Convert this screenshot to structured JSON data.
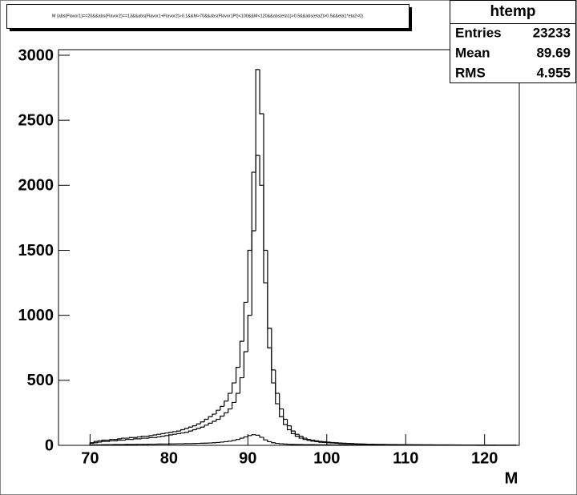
{
  "chart_data": {
    "type": "histogram",
    "title": "M {abs(Flavor1)==20&&abs(Flavor2)==13&&abs(Flavor1+Flavor2)>0.1&&M>70&&abs(Flavor1Pt)<100&&M<120&&abs(eta1)>0.5&&abs(eta2)>0.5&&eta1*eta2<0}",
    "x_label": "M",
    "xlim": [
      66,
      124.4
    ],
    "ylim": [
      0,
      3043
    ],
    "xticks": [
      70,
      80,
      90,
      100,
      110,
      120
    ],
    "yticks": [
      0,
      500,
      1000,
      1500,
      2000,
      2500,
      3000
    ],
    "bins": [
      70,
      70.5,
      71,
      71.5,
      72,
      72.5,
      73,
      73.5,
      74,
      74.5,
      75,
      75.5,
      76,
      76.5,
      77,
      77.5,
      78,
      78.5,
      79,
      79.5,
      80,
      80.5,
      81,
      81.5,
      82,
      82.5,
      83,
      83.5,
      84,
      84.5,
      85,
      85.5,
      86,
      86.5,
      87,
      87.5,
      88,
      88.5,
      89,
      89.5,
      90,
      90.5,
      91,
      91.5,
      92,
      92.5,
      93,
      93.5,
      94,
      94.5,
      95,
      95.5,
      96,
      96.5,
      97,
      97.5,
      98,
      98.5,
      99,
      99.5,
      100,
      100.5,
      101,
      101.5,
      102,
      102.5,
      103,
      103.5,
      104,
      104.5,
      105,
      105.5,
      106,
      106.5,
      107,
      107.5,
      108,
      108.5,
      109,
      109.5,
      110,
      110.5,
      111,
      111.5,
      112,
      112.5,
      113,
      113.5,
      114,
      114.5,
      115,
      115.5,
      116,
      116.5,
      117,
      117.5,
      118,
      118.5,
      119,
      119.5,
      120,
      120.5,
      121,
      121.5,
      122,
      122.5,
      123,
      123.5,
      124
    ],
    "series": [
      {
        "color": "#000000",
        "values": [
          20,
          30,
          35,
          40,
          40,
          45,
          45,
          50,
          55,
          55,
          60,
          60,
          65,
          70,
          70,
          75,
          80,
          85,
          90,
          95,
          100,
          105,
          110,
          120,
          130,
          140,
          150,
          165,
          180,
          200,
          220,
          240,
          270,
          300,
          340,
          400,
          480,
          600,
          800,
          1100,
          1500,
          2100,
          2890,
          2550,
          1500,
          900,
          580,
          400,
          280,
          200,
          150,
          110,
          85,
          70,
          55,
          45,
          40,
          35,
          30,
          28,
          25,
          22,
          20,
          18,
          16,
          15,
          14,
          12,
          11,
          10,
          8,
          8,
          7,
          7,
          7,
          6,
          6,
          6,
          5,
          5,
          5,
          5,
          4,
          4,
          4,
          4,
          4,
          3,
          3,
          3,
          3,
          3,
          3,
          3,
          2,
          2,
          2,
          2,
          2,
          2,
          2,
          2,
          2,
          1,
          1,
          1,
          1,
          1
        ]
      },
      {
        "color": "#000000",
        "values": [
          15,
          20,
          25,
          30,
          30,
          35,
          35,
          40,
          40,
          45,
          45,
          50,
          50,
          55,
          55,
          60,
          60,
          65,
          70,
          75,
          80,
          85,
          90,
          95,
          100,
          110,
          120,
          130,
          140,
          155,
          170,
          185,
          200,
          225,
          250,
          280,
          330,
          400,
          520,
          720,
          1000,
          1650,
          2230,
          2000,
          1250,
          750,
          480,
          320,
          220,
          160,
          120,
          90,
          70,
          55,
          45,
          38,
          32,
          28,
          24,
          22,
          20,
          18,
          16,
          14,
          13,
          12,
          11,
          10,
          9,
          8,
          7,
          7,
          6,
          6,
          6,
          5,
          5,
          5,
          5,
          4,
          4,
          4,
          4,
          4,
          3,
          3,
          3,
          3,
          3,
          3,
          3,
          3,
          2,
          2,
          2,
          2,
          2,
          2,
          2,
          2,
          1,
          1,
          1,
          1,
          1,
          1,
          1,
          1
        ]
      },
      {
        "color": "#000000",
        "values": [
          3,
          4,
          4,
          5,
          5,
          5,
          6,
          6,
          6,
          7,
          7,
          7,
          8,
          8,
          8,
          9,
          9,
          10,
          10,
          10,
          11,
          11,
          12,
          12,
          13,
          13,
          14,
          15,
          16,
          17,
          18,
          20,
          22,
          25,
          28,
          32,
          38,
          45,
          55,
          65,
          75,
          82,
          78,
          62,
          42,
          28,
          20,
          15,
          12,
          10,
          8,
          7,
          6,
          6,
          5,
          5,
          5,
          4,
          4,
          4,
          4,
          3,
          3,
          3,
          3,
          3,
          2,
          2,
          2,
          2,
          2,
          2,
          2,
          2,
          2,
          2,
          2,
          2,
          2,
          2,
          1,
          1,
          1,
          1,
          1,
          1,
          1,
          1,
          1,
          1,
          1,
          1,
          1,
          1,
          1,
          1,
          1,
          1,
          0,
          0,
          0,
          0,
          0,
          0,
          0,
          0,
          0,
          0
        ]
      }
    ],
    "stats": {
      "title": "htemp",
      "rows": [
        {
          "label": "Entries",
          "value": 23233
        },
        {
          "label": "Mean",
          "value": 89.69
        },
        {
          "label": "RMS",
          "value": 4.955
        }
      ]
    }
  }
}
